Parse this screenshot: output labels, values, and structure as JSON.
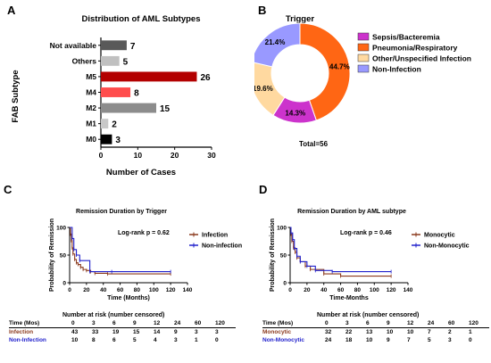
{
  "panels": {
    "A": {
      "label": "A",
      "chart_data": {
        "type": "bar",
        "orientation": "horizontal",
        "title": "Distribution of AML Subtypes",
        "xlabel": "Number of Cases",
        "ylabel": "FAB Subtype",
        "categories": [
          "Not available",
          "Others",
          "M5",
          "M4",
          "M2",
          "M1",
          "M0"
        ],
        "values": [
          7,
          5,
          26,
          8,
          15,
          2,
          3
        ],
        "colors": [
          "#595959",
          "#c0c0c0",
          "#b30000",
          "#ff4d4d",
          "#8c8c8c",
          "#c8c8c8",
          "#000000"
        ],
        "xlim": [
          0,
          30
        ],
        "xticks": [
          "0",
          "10",
          "20",
          "30"
        ]
      }
    },
    "B": {
      "label": "B",
      "chart_data": {
        "type": "pie",
        "donut": true,
        "title": "Trigger",
        "categories": [
          "Sepsis/Bacteremia",
          "Pneumonia/Respiratory",
          "Other/Unspecified Infection",
          "Non-Infection"
        ],
        "values": [
          14.3,
          44.7,
          19.6,
          21.4
        ],
        "labels": [
          "14.3%",
          "44.7%",
          "19.6%",
          "21.4%"
        ],
        "colors": [
          "#cc33cc",
          "#ff6614",
          "#ffd9a0",
          "#9999ff"
        ],
        "total_label": "Total=56"
      }
    },
    "C": {
      "label": "C",
      "chart_data": {
        "type": "line",
        "step": true,
        "title": "Remission Duration by Trigger",
        "xlabel": "Time (Months)",
        "ylabel": "Probability of Remission",
        "xlim": [
          0,
          140
        ],
        "ylim": [
          0,
          100
        ],
        "xticks": [
          "0",
          "20",
          "40",
          "60",
          "80",
          "100",
          "120",
          "140"
        ],
        "yticks": [
          "0",
          "50",
          "100"
        ],
        "annotation": "Log-rank p = 0.62",
        "series": [
          {
            "name": "Infection",
            "color": "#8b3a1e",
            "x": [
              0,
              1,
              2,
              3,
              4,
              6,
              8,
              10,
              13,
              16,
              20,
              25,
              30,
              45,
              120
            ],
            "y": [
              100,
              88,
              76,
              63,
              52,
              42,
              36,
              33,
              28,
              24,
              22,
              20,
              17,
              16,
              16
            ]
          },
          {
            "name": "Non-infection",
            "color": "#2222cc",
            "x": [
              0,
              3,
              5,
              8,
              12,
              24,
              50,
              120
            ],
            "y": [
              100,
              80,
              60,
              50,
              40,
              20,
              20,
              20
            ]
          }
        ],
        "risk_table": {
          "title": "Number at risk (number censored)",
          "header_label": "Time (Mos)",
          "times": [
            "0",
            "3",
            "6",
            "9",
            "12",
            "24",
            "60",
            "120"
          ],
          "rows": [
            {
              "name": "Infection",
              "color": "#8b3a1e",
              "values": [
                "43",
                "33",
                "19",
                "15",
                "14",
                "9",
                "3",
                "3"
              ]
            },
            {
              "name": "Non-Infection",
              "color": "#2222cc",
              "values": [
                "10",
                "8",
                "6",
                "5",
                "4",
                "3",
                "1",
                "0"
              ]
            }
          ]
        }
      }
    },
    "D": {
      "label": "D",
      "chart_data": {
        "type": "line",
        "step": true,
        "title": "Remission Duration by AML subtype",
        "xlabel": "Time-Months",
        "ylabel": "Probability of Remission",
        "xlim": [
          0,
          140
        ],
        "ylim": [
          0,
          100
        ],
        "xticks": [
          "0",
          "20",
          "40",
          "60",
          "80",
          "100",
          "120",
          "140"
        ],
        "yticks": [
          "0",
          "50",
          "100"
        ],
        "annotation": "Log-rank p = 0.46",
        "series": [
          {
            "name": "Monocytic",
            "color": "#8b3a1e",
            "x": [
              0,
              1,
              2,
              4,
              6,
              8,
              12,
              18,
              24,
              40,
              60,
              120
            ],
            "y": [
              100,
              88,
              75,
              63,
              55,
              45,
              38,
              30,
              24,
              16,
              12,
              12
            ]
          },
          {
            "name": "Non-Monocytic",
            "color": "#2222cc",
            "x": [
              0,
              1,
              3,
              5,
              8,
              12,
              20,
              30,
              50,
              120
            ],
            "y": [
              100,
              90,
              78,
              62,
              48,
              38,
              30,
              22,
              20,
              20
            ]
          }
        ],
        "risk_table": {
          "title": "Number at risk (number censored)",
          "header_label": "Time (Mos)",
          "times": [
            "0",
            "3",
            "6",
            "9",
            "12",
            "24",
            "60",
            "120"
          ],
          "rows": [
            {
              "name": "Monocytic",
              "color": "#8b3a1e",
              "values": [
                "32",
                "22",
                "13",
                "10",
                "10",
                "7",
                "2",
                "1"
              ]
            },
            {
              "name": "Non-Monocytic",
              "color": "#2222cc",
              "values": [
                "24",
                "18",
                "10",
                "9",
                "7",
                "5",
                "3",
                "0"
              ]
            }
          ]
        }
      }
    }
  }
}
